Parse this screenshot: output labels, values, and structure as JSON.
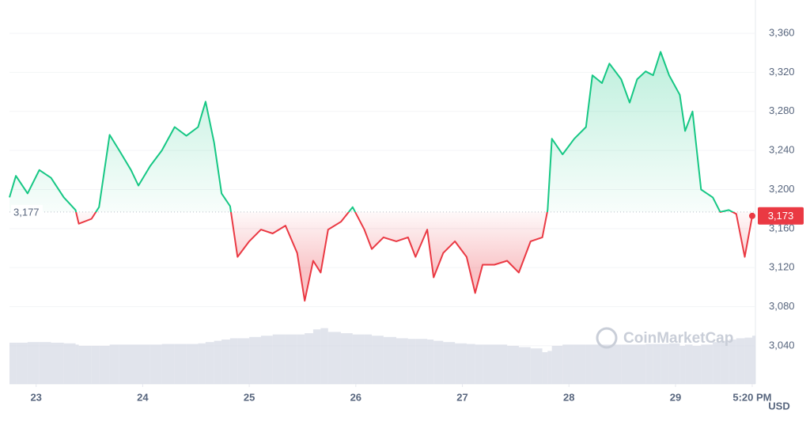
{
  "chart_data": {
    "type": "line",
    "ylabel": "USD",
    "watermark": "CoinMarketCap",
    "colors": {
      "up": "#16c784",
      "down": "#ea3943",
      "volume": "#d7dbe5"
    },
    "grid": true,
    "baseline": {
      "value": 3177,
      "label": "3,177"
    },
    "last_price": {
      "value": 3173,
      "label": "3,173"
    },
    "xlim": [
      22.75,
      29.75
    ],
    "xticks": [
      23,
      24,
      25,
      26,
      27,
      28,
      29,
      {
        "value": 29.72,
        "label": "5:20 PM"
      }
    ],
    "ylim": [
      3001,
      3386
    ],
    "yticks": [
      {
        "value": 3040,
        "label": "3,040"
      },
      {
        "value": 3080,
        "label": "3,080"
      },
      {
        "value": 3120,
        "label": "3,120"
      },
      {
        "value": 3160,
        "label": "3,160"
      },
      {
        "value": 3200,
        "label": "3,200"
      },
      {
        "value": 3240,
        "label": "3,240"
      },
      {
        "value": 3280,
        "label": "3,280"
      },
      {
        "value": 3320,
        "label": "3,320"
      },
      {
        "value": 3360,
        "label": "3,360"
      }
    ],
    "x": [
      22.75,
      22.81,
      22.92,
      23.03,
      23.14,
      23.26,
      23.37,
      23.4,
      23.52,
      23.59,
      23.69,
      23.78,
      23.89,
      23.96,
      24.07,
      24.18,
      24.3,
      24.41,
      24.52,
      24.59,
      24.67,
      24.74,
      24.82,
      24.89,
      25.0,
      25.11,
      25.22,
      25.34,
      25.45,
      25.52,
      25.6,
      25.67,
      25.74,
      25.86,
      25.97,
      26.08,
      26.15,
      26.26,
      26.38,
      26.49,
      26.56,
      26.67,
      26.73,
      26.82,
      26.93,
      27.04,
      27.12,
      27.19,
      27.3,
      27.42,
      27.53,
      27.64,
      27.75,
      27.8,
      27.84,
      27.94,
      28.05,
      28.16,
      28.22,
      28.31,
      28.38,
      28.49,
      28.57,
      28.64,
      28.72,
      28.79,
      28.86,
      28.94,
      29.04,
      29.09,
      29.16,
      29.24,
      29.35,
      29.42,
      29.5,
      29.57,
      29.65,
      29.72
    ],
    "values": [
      3192,
      3214,
      3196,
      3220,
      3212,
      3192,
      3179,
      3165,
      3170,
      3182,
      3256,
      3240,
      3220,
      3204,
      3224,
      3240,
      3264,
      3255,
      3264,
      3290,
      3248,
      3196,
      3183,
      3131,
      3147,
      3159,
      3155,
      3163,
      3135,
      3086,
      3127,
      3115,
      3159,
      3167,
      3182,
      3159,
      3139,
      3151,
      3147,
      3151,
      3131,
      3159,
      3110,
      3135,
      3147,
      3131,
      3094,
      3123,
      3123,
      3127,
      3115,
      3147,
      3151,
      3179,
      3252,
      3236,
      3252,
      3264,
      3317,
      3309,
      3329,
      3313,
      3289,
      3313,
      3321,
      3317,
      3341,
      3317,
      3297,
      3260,
      3280,
      3200,
      3192,
      3177,
      3179,
      3175,
      3131,
      3173
    ],
    "volume_lim": [
      0,
      100
    ],
    "volume": [
      65,
      65,
      66,
      66,
      65,
      64,
      62,
      60,
      60,
      60,
      62,
      62,
      62,
      62,
      62,
      63,
      63,
      63,
      64,
      66,
      68,
      70,
      72,
      72,
      74,
      76,
      78,
      78,
      78,
      80,
      86,
      88,
      82,
      80,
      78,
      78,
      76,
      74,
      72,
      71,
      71,
      70,
      68,
      66,
      64,
      63,
      62,
      62,
      62,
      60,
      58,
      56,
      50,
      52,
      60,
      62,
      62,
      62,
      62,
      62,
      62,
      62,
      62,
      62,
      63,
      63,
      63,
      64,
      60,
      62,
      60,
      62,
      66,
      68,
      70,
      72,
      73,
      76
    ]
  }
}
